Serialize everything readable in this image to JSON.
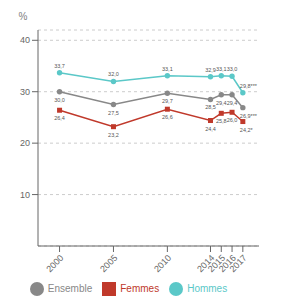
{
  "chart_data": {
    "type": "line",
    "x": [
      2000,
      2005,
      2010,
      2014,
      2015,
      2016,
      2017
    ],
    "xlim": [
      1998,
      2018.5
    ],
    "xticks": [
      2000,
      2005,
      2010,
      2014,
      2015,
      2016,
      2017
    ],
    "ylim": [
      0,
      42
    ],
    "yticks": [
      10,
      20,
      30,
      40
    ],
    "ylabel": "%",
    "grid": true,
    "legend": "bottom",
    "data_labels": true,
    "series": [
      {
        "name": "Hommes",
        "color": "#5BC8C8",
        "marker": "circle",
        "values": [
          33.7,
          32.0,
          33.1,
          32.9,
          33.1,
          33.0,
          29.8
        ],
        "value_labels": [
          "33,7",
          "32,0",
          "33,1",
          "32,9",
          "33,1",
          "33,0",
          "29,8***"
        ]
      },
      {
        "name": "Femmes",
        "color": "#C0392B",
        "marker": "square",
        "values": [
          26.4,
          23.2,
          26.6,
          24.4,
          25.8,
          26.0,
          24.2
        ],
        "value_labels": [
          "26,4",
          "23,2",
          "26,6",
          "24,4",
          "25,8",
          "26,0",
          "24,2*"
        ]
      },
      {
        "name": "Ensemble",
        "color": "#888888",
        "marker": "circle",
        "values": [
          30.0,
          27.5,
          29.7,
          28.5,
          29.4,
          29.4,
          26.9
        ],
        "value_labels": [
          "30,0",
          "27,5",
          "29,7",
          "28,5",
          "29,4",
          "29,4",
          "26,9***"
        ]
      }
    ]
  }
}
